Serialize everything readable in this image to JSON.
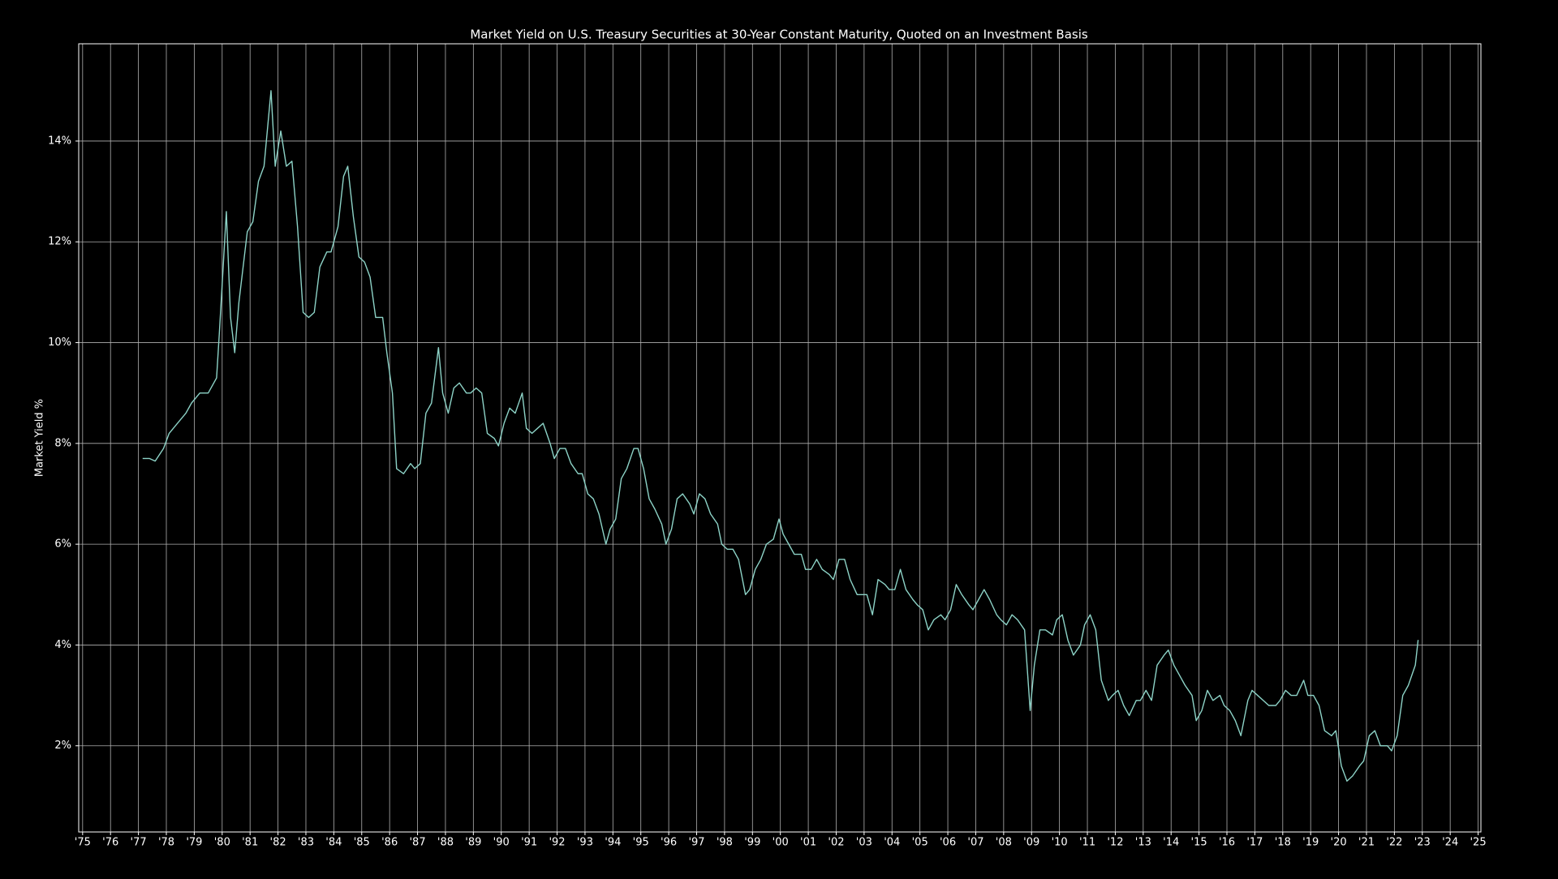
{
  "chart_data": {
    "type": "line",
    "title": "Market Yield on U.S. Treasury Securities at 30-Year Constant Maturity, Quoted on an Investment Basis",
    "y_label": "Market Yield %",
    "color": "#8dd3c7",
    "grid": true,
    "x": [
      1977.15,
      1977.4,
      1977.6,
      1977.9,
      1978.1,
      1978.4,
      1978.7,
      1978.9,
      1979.2,
      1979.5,
      1979.8,
      1979.9,
      1980.15,
      1980.3,
      1980.45,
      1980.6,
      1980.9,
      1981.1,
      1981.3,
      1981.5,
      1981.75,
      1981.9,
      1982.1,
      1982.3,
      1982.5,
      1982.7,
      1982.9,
      1983.1,
      1983.3,
      1983.5,
      1983.75,
      1983.9,
      1984.15,
      1984.35,
      1984.5,
      1984.7,
      1984.9,
      1985.1,
      1985.3,
      1985.5,
      1985.75,
      1985.9,
      1986.1,
      1986.25,
      1986.5,
      1986.75,
      1986.9,
      1987.1,
      1987.3,
      1987.5,
      1987.75,
      1987.9,
      1988.1,
      1988.3,
      1988.5,
      1988.75,
      1988.9,
      1989.1,
      1989.3,
      1989.5,
      1989.75,
      1989.9,
      1990.1,
      1990.3,
      1990.5,
      1990.75,
      1990.9,
      1991.1,
      1991.3,
      1991.5,
      1991.75,
      1991.9,
      1992.1,
      1992.3,
      1992.5,
      1992.75,
      1992.9,
      1993.1,
      1993.3,
      1993.5,
      1993.75,
      1993.9,
      1994.1,
      1994.3,
      1994.5,
      1994.75,
      1994.9,
      1995.1,
      1995.3,
      1995.5,
      1995.75,
      1995.9,
      1996.1,
      1996.3,
      1996.5,
      1996.75,
      1996.9,
      1997.1,
      1997.3,
      1997.5,
      1997.75,
      1997.9,
      1998.1,
      1998.3,
      1998.5,
      1998.75,
      1998.9,
      1999.1,
      1999.3,
      1999.5,
      1999.75,
      1999.95,
      2000.1,
      2000.3,
      2000.5,
      2000.75,
      2000.9,
      2001.1,
      2001.3,
      2001.5,
      2001.75,
      2001.9,
      2002.1,
      2002.3,
      2002.5,
      2002.75,
      2002.9,
      2003.1,
      2003.3,
      2003.5,
      2003.75,
      2003.9,
      2004.1,
      2004.3,
      2004.5,
      2004.75,
      2004.9,
      2005.1,
      2005.3,
      2005.5,
      2005.75,
      2005.9,
      2006.1,
      2006.3,
      2006.5,
      2006.75,
      2006.9,
      2007.1,
      2007.3,
      2007.5,
      2007.75,
      2007.9,
      2008.1,
      2008.3,
      2008.5,
      2008.75,
      2008.95,
      2009.1,
      2009.3,
      2009.5,
      2009.75,
      2009.9,
      2010.1,
      2010.3,
      2010.5,
      2010.75,
      2010.9,
      2011.1,
      2011.3,
      2011.5,
      2011.75,
      2011.9,
      2012.1,
      2012.3,
      2012.5,
      2012.75,
      2012.9,
      2013.1,
      2013.3,
      2013.5,
      2013.75,
      2013.9,
      2014.1,
      2014.3,
      2014.5,
      2014.75,
      2014.9,
      2015.1,
      2015.3,
      2015.5,
      2015.75,
      2015.9,
      2016.1,
      2016.3,
      2016.5,
      2016.75,
      2016.9,
      2017.1,
      2017.3,
      2017.5,
      2017.75,
      2017.9,
      2018.1,
      2018.3,
      2018.5,
      2018.75,
      2018.9,
      2019.1,
      2019.3,
      2019.5,
      2019.75,
      2019.9,
      2020.1,
      2020.3,
      2020.5,
      2020.75,
      2020.9,
      2021.1,
      2021.3,
      2021.5,
      2021.75,
      2021.9,
      2022.1,
      2022.3,
      2022.5,
      2022.75,
      2022.85
    ],
    "values": [
      7.7,
      7.7,
      7.65,
      7.9,
      8.2,
      8.4,
      8.6,
      8.8,
      9.0,
      9.0,
      9.3,
      10.2,
      12.6,
      10.5,
      9.8,
      10.8,
      12.2,
      12.4,
      13.2,
      13.5,
      15.0,
      13.5,
      14.2,
      13.5,
      13.6,
      12.3,
      10.6,
      10.5,
      10.6,
      11.5,
      11.8,
      11.8,
      12.3,
      13.3,
      13.5,
      12.5,
      11.7,
      11.6,
      11.3,
      10.5,
      10.5,
      9.8,
      9.0,
      7.5,
      7.4,
      7.6,
      7.5,
      7.6,
      8.6,
      8.8,
      9.9,
      9.0,
      8.6,
      9.1,
      9.2,
      9.0,
      9.0,
      9.1,
      9.0,
      8.2,
      8.1,
      7.95,
      8.4,
      8.7,
      8.6,
      9.0,
      8.3,
      8.2,
      8.3,
      8.4,
      8.0,
      7.7,
      7.9,
      7.9,
      7.6,
      7.4,
      7.4,
      7.0,
      6.9,
      6.6,
      6.0,
      6.3,
      6.5,
      7.3,
      7.5,
      7.9,
      7.9,
      7.5,
      6.9,
      6.7,
      6.4,
      6.0,
      6.3,
      6.9,
      7.0,
      6.8,
      6.6,
      7.0,
      6.9,
      6.6,
      6.4,
      6.0,
      5.9,
      5.9,
      5.7,
      5.0,
      5.1,
      5.5,
      5.7,
      6.0,
      6.1,
      6.5,
      6.2,
      6.0,
      5.8,
      5.8,
      5.5,
      5.5,
      5.7,
      5.5,
      5.4,
      5.3,
      5.7,
      5.7,
      5.3,
      5.0,
      5.0,
      5.0,
      4.6,
      5.3,
      5.2,
      5.1,
      5.1,
      5.5,
      5.1,
      4.9,
      4.8,
      4.7,
      4.3,
      4.5,
      4.6,
      4.5,
      4.7,
      5.2,
      5.0,
      4.8,
      4.7,
      4.9,
      5.1,
      4.9,
      4.6,
      4.5,
      4.4,
      4.6,
      4.5,
      4.3,
      2.7,
      3.6,
      4.3,
      4.3,
      4.2,
      4.5,
      4.6,
      4.1,
      3.8,
      4.0,
      4.4,
      4.6,
      4.3,
      3.3,
      2.9,
      3.0,
      3.1,
      2.8,
      2.6,
      2.9,
      2.9,
      3.1,
      2.9,
      3.6,
      3.8,
      3.9,
      3.6,
      3.4,
      3.2,
      3.0,
      2.5,
      2.7,
      3.1,
      2.9,
      3.0,
      2.8,
      2.7,
      2.5,
      2.2,
      2.9,
      3.1,
      3.0,
      2.9,
      2.8,
      2.8,
      2.9,
      3.1,
      3.0,
      3.0,
      3.3,
      3.0,
      3.0,
      2.8,
      2.3,
      2.2,
      2.3,
      1.6,
      1.3,
      1.4,
      1.6,
      1.7,
      2.2,
      2.3,
      2.0,
      2.0,
      1.9,
      2.2,
      3.0,
      3.2,
      3.6,
      4.1
    ],
    "xlim": [
      1974.86,
      2025.1
    ],
    "ylim": [
      0.29,
      15.93
    ],
    "yticks": [
      {
        "value": 2,
        "label": "2%"
      },
      {
        "value": 4,
        "label": "4%"
      },
      {
        "value": 6,
        "label": "6%"
      },
      {
        "value": 8,
        "label": "8%"
      },
      {
        "value": 10,
        "label": "10%"
      },
      {
        "value": 12,
        "label": "12%"
      },
      {
        "value": 14,
        "label": "14%"
      }
    ],
    "xticks": [
      {
        "value": 1975,
        "label": "'75"
      },
      {
        "value": 1976,
        "label": "'76"
      },
      {
        "value": 1977,
        "label": "'77"
      },
      {
        "value": 1978,
        "label": "'78"
      },
      {
        "value": 1979,
        "label": "'79"
      },
      {
        "value": 1980,
        "label": "'80"
      },
      {
        "value": 1981,
        "label": "'81"
      },
      {
        "value": 1982,
        "label": "'82"
      },
      {
        "value": 1983,
        "label": "'83"
      },
      {
        "value": 1984,
        "label": "'84"
      },
      {
        "value": 1985,
        "label": "'85"
      },
      {
        "value": 1986,
        "label": "'86"
      },
      {
        "value": 1987,
        "label": "'87"
      },
      {
        "value": 1988,
        "label": "'88"
      },
      {
        "value": 1989,
        "label": "'89"
      },
      {
        "value": 1990,
        "label": "'90"
      },
      {
        "value": 1991,
        "label": "'91"
      },
      {
        "value": 1992,
        "label": "'92"
      },
      {
        "value": 1993,
        "label": "'93"
      },
      {
        "value": 1994,
        "label": "'94"
      },
      {
        "value": 1995,
        "label": "'95"
      },
      {
        "value": 1996,
        "label": "'96"
      },
      {
        "value": 1997,
        "label": "'97"
      },
      {
        "value": 1998,
        "label": "'98"
      },
      {
        "value": 1999,
        "label": "'99"
      },
      {
        "value": 2000,
        "label": "'00"
      },
      {
        "value": 2001,
        "label": "'01"
      },
      {
        "value": 2002,
        "label": "'02"
      },
      {
        "value": 2003,
        "label": "'03"
      },
      {
        "value": 2004,
        "label": "'04"
      },
      {
        "value": 2005,
        "label": "'05"
      },
      {
        "value": 2006,
        "label": "'06"
      },
      {
        "value": 2007,
        "label": "'07"
      },
      {
        "value": 2008,
        "label": "'08"
      },
      {
        "value": 2009,
        "label": "'09"
      },
      {
        "value": 2010,
        "label": "'10"
      },
      {
        "value": 2011,
        "label": "'11"
      },
      {
        "value": 2012,
        "label": "'12"
      },
      {
        "value": 2013,
        "label": "'13"
      },
      {
        "value": 2014,
        "label": "'14"
      },
      {
        "value": 2015,
        "label": "'15"
      },
      {
        "value": 2016,
        "label": "'16"
      },
      {
        "value": 2017,
        "label": "'17"
      },
      {
        "value": 2018,
        "label": "'18"
      },
      {
        "value": 2019,
        "label": "'19"
      },
      {
        "value": 2020,
        "label": "'20"
      },
      {
        "value": 2021,
        "label": "'21"
      },
      {
        "value": 2022,
        "label": "'22"
      },
      {
        "value": 2023,
        "label": "'23"
      },
      {
        "value": 2024,
        "label": "'24"
      },
      {
        "value": 2025,
        "label": "'25"
      }
    ]
  }
}
